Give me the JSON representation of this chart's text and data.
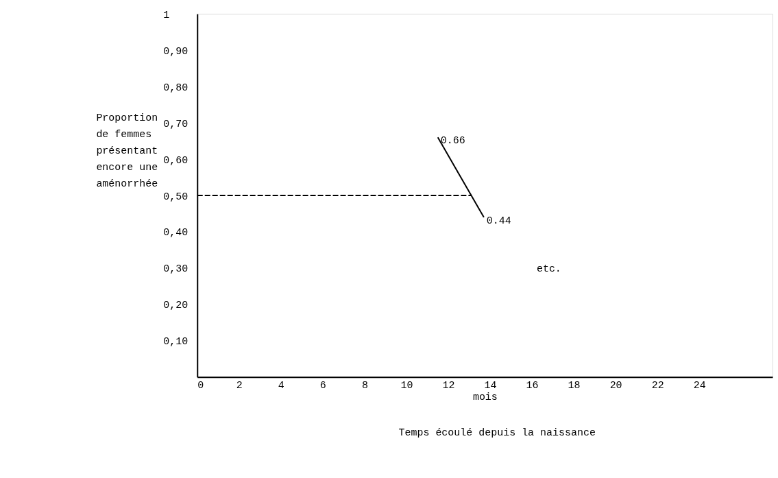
{
  "chart_data": {
    "type": "line",
    "xlabel": "mois",
    "ylabel": "Proportion\nde femmes\nprésentant\nencore une\naménorrhée",
    "xlim": [
      0,
      27.5
    ],
    "ylim": [
      0,
      1
    ],
    "xticks": [
      0,
      2,
      4,
      6,
      8,
      10,
      12,
      14,
      16,
      18,
      20,
      22,
      24
    ],
    "yticks": [
      {
        "value": 0.1,
        "label": "0,10"
      },
      {
        "value": 0.2,
        "label": "0,20"
      },
      {
        "value": 0.3,
        "label": "0,30"
      },
      {
        "value": 0.4,
        "label": "0,40"
      },
      {
        "value": 0.5,
        "label": "0,50"
      },
      {
        "value": 0.6,
        "label": "0,60"
      },
      {
        "value": 0.7,
        "label": "0,70"
      },
      {
        "value": 0.8,
        "label": "0,80"
      },
      {
        "value": 0.9,
        "label": "0,90"
      },
      1
    ],
    "grid": false,
    "marker": "none",
    "series": [
      {
        "color": "#000000",
        "x": [
          11.5,
          13.7
        ],
        "values": [
          0.66,
          0.44
        ],
        "value_labels": [
          "0.66",
          "0.44"
        ],
        "line_style": "solid"
      },
      {
        "color": "#000000",
        "x": [
          0,
          13.1
        ],
        "values": [
          0.5,
          0.5
        ],
        "line_style": "dashed"
      }
    ],
    "annotations": [
      "etc.",
      "Temps écoulé depuis la naissance"
    ]
  }
}
